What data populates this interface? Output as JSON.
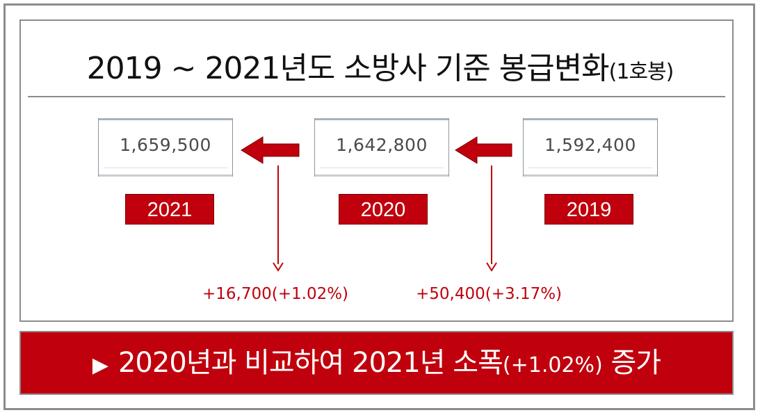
{
  "title": {
    "main": "2019 ~ 2021년도 소방사 기준 봉급변화",
    "note": "(1호봉)"
  },
  "values": [
    {
      "amount": "1,659,500",
      "year": "2021"
    },
    {
      "amount": "1,642,800",
      "year": "2020"
    },
    {
      "amount": "1,592,400",
      "year": "2019"
    }
  ],
  "changes": [
    {
      "text": "+16,700(+1.02%)"
    },
    {
      "text": "+50,400(+3.17%)"
    }
  ],
  "summary": {
    "bullet": "▶",
    "before": "2020년과 비교하여 2021년 소폭",
    "pct": "(+1.02%)",
    "after": " 증가"
  },
  "colors": {
    "accent": "#c0000c",
    "border": "#8c8c8c"
  }
}
